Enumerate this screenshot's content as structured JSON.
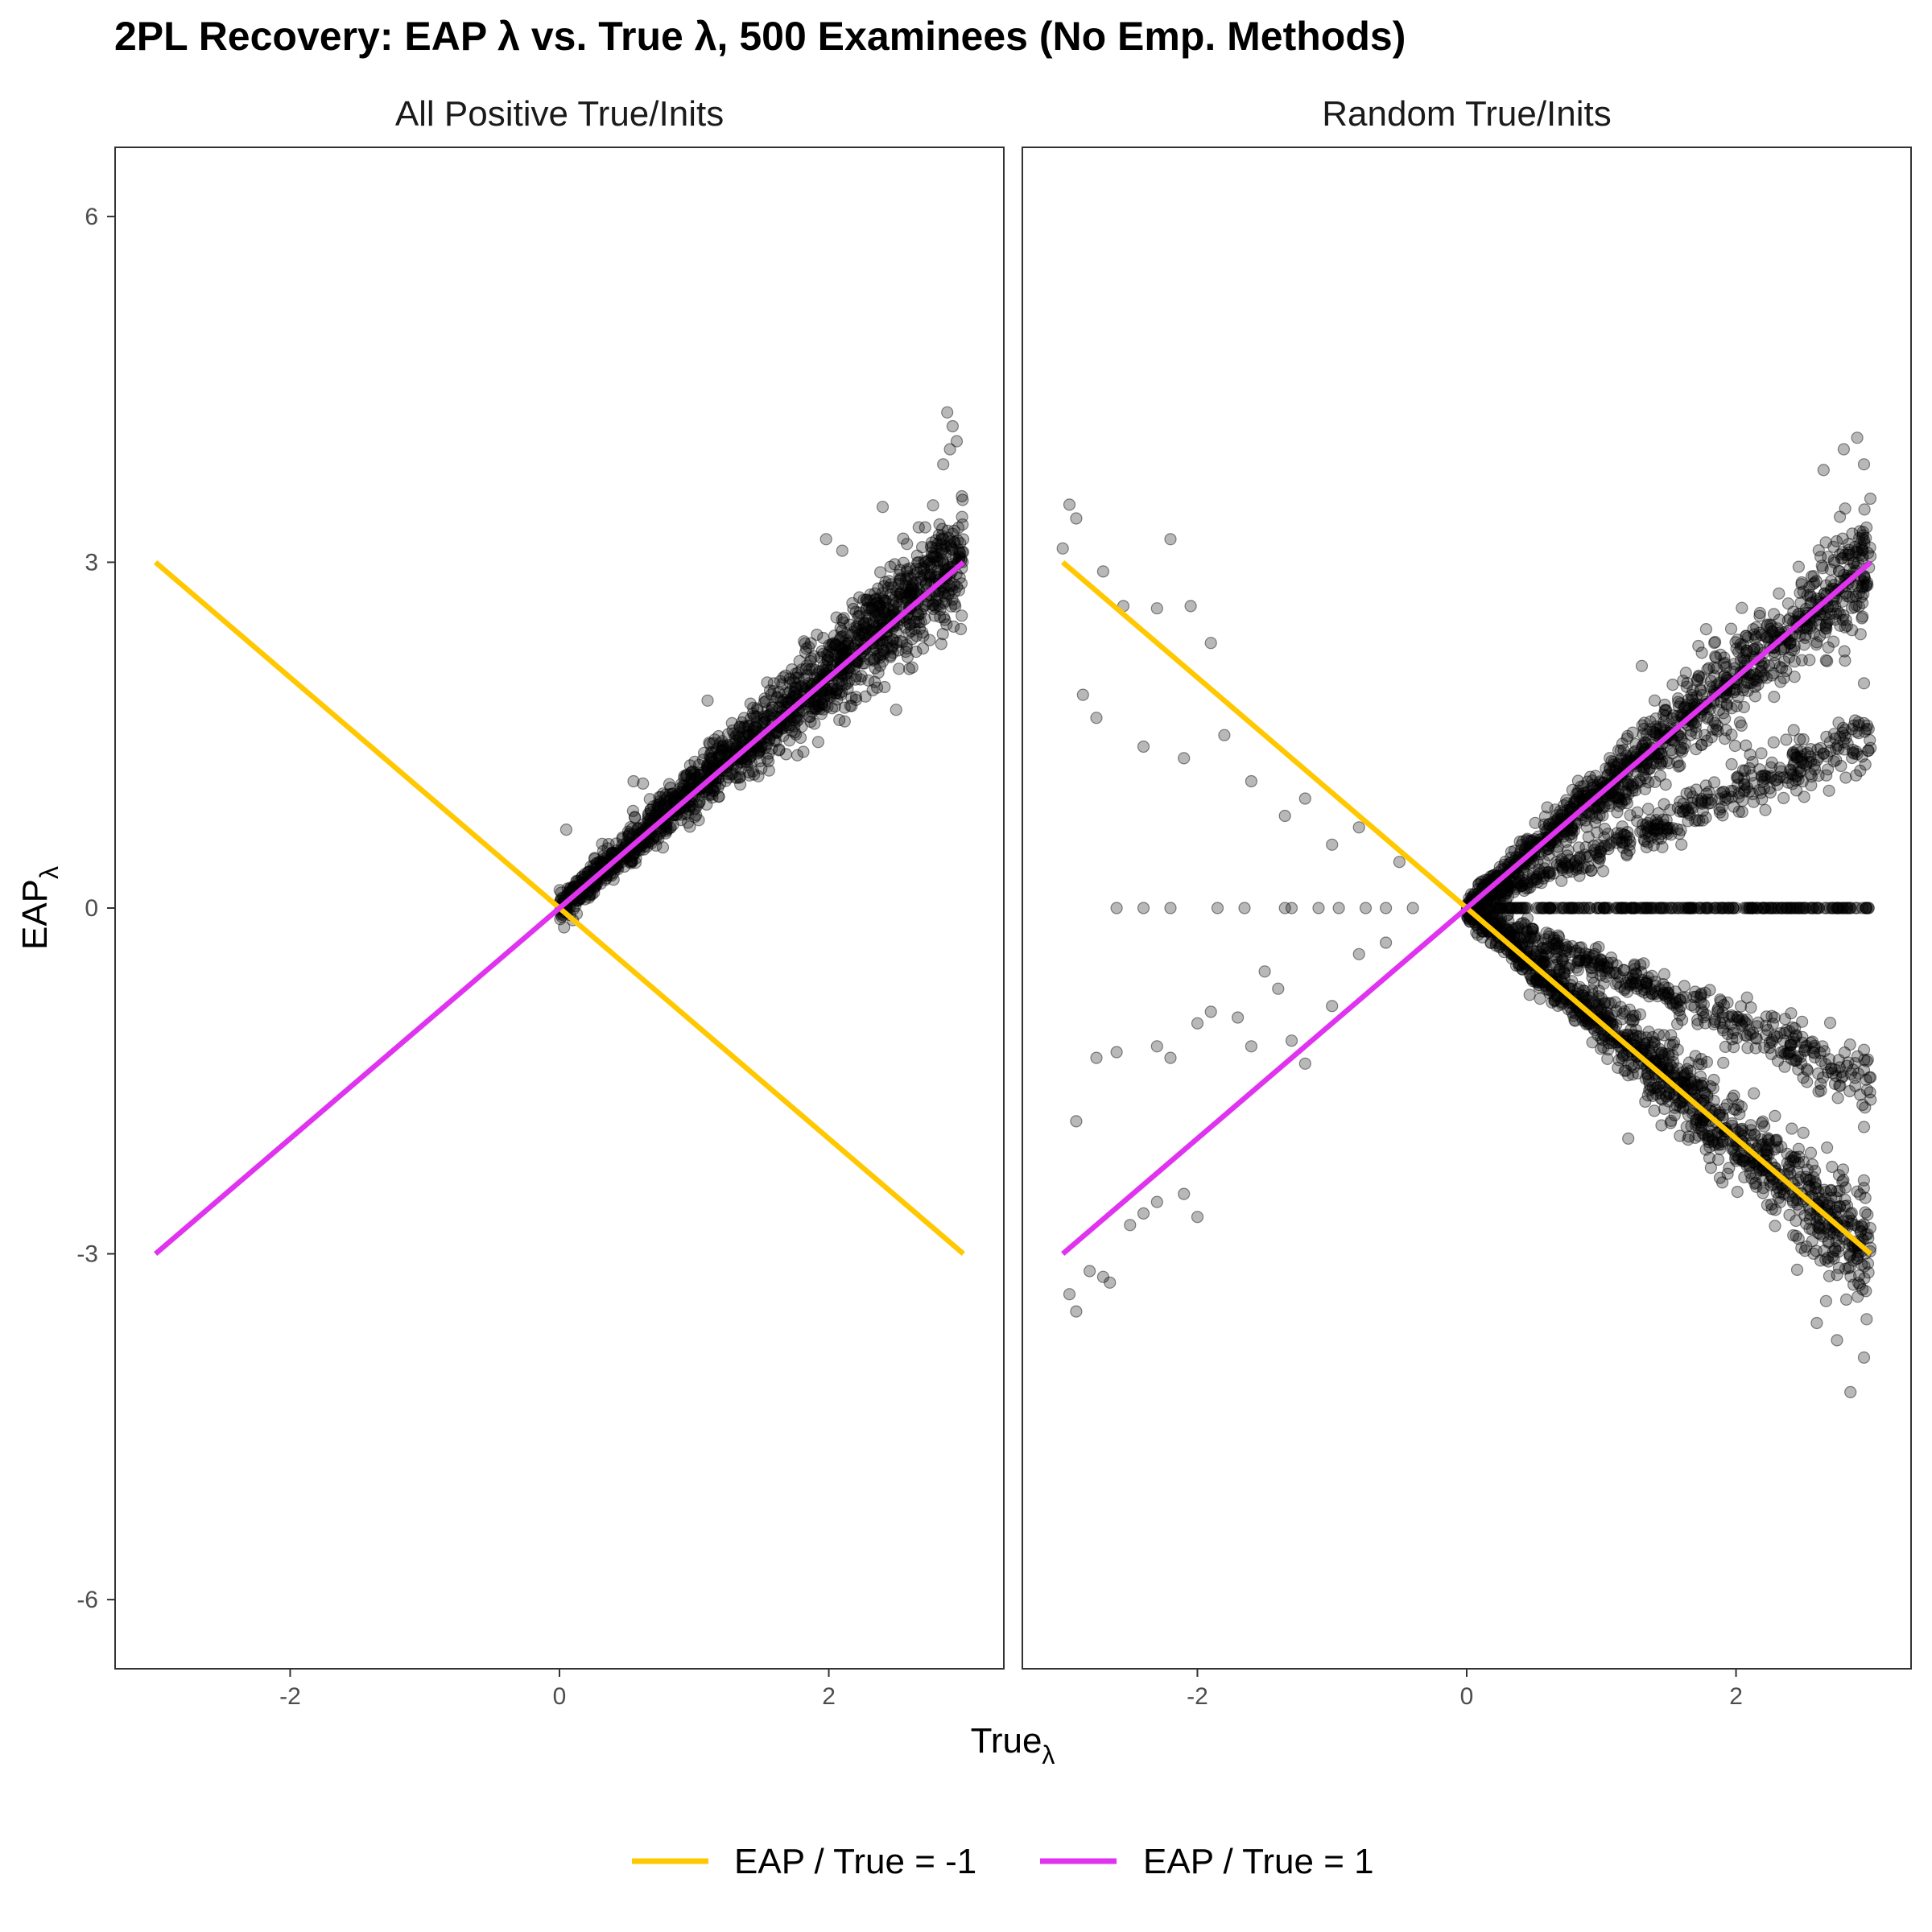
{
  "chart_data": {
    "type": "scatter",
    "title": "2PL Recovery: EAP λ vs. True λ, 500 Examinees (No Emp. Methods)",
    "xlabel": {
      "main": "True",
      "sub": "λ"
    },
    "ylabel": {
      "main": "EAP",
      "sub": "λ"
    },
    "xlim": [
      -3.3,
      3.3
    ],
    "ylim": [
      -6.6,
      6.6
    ],
    "x_ticks": [
      -2,
      0,
      2
    ],
    "x_tick_labels": [
      "-2",
      "0",
      "2"
    ],
    "y_ticks": [
      6,
      3,
      0,
      -3,
      -6
    ],
    "y_tick_labels": [
      "6",
      "3",
      "0",
      "-3",
      "-6"
    ],
    "grid": false,
    "legend_position": "bottom",
    "reference_lines": [
      {
        "name": "EAP / True = -1",
        "slope": -1,
        "x_range": [
          -3,
          3
        ],
        "color": "#FFC800"
      },
      {
        "name": "EAP / True = 1",
        "slope": 1,
        "x_range": [
          -3,
          3
        ],
        "color": "#E033F0"
      }
    ],
    "panels": [
      {
        "label": "All Positive True/Inits",
        "true_x_range": [
          0.0,
          3.0
        ],
        "clusters": [
          {
            "slope": 1.02,
            "x_range": [
              0.0,
              3.0
            ],
            "spread": 0.14,
            "count": 1700
          }
        ],
        "outliers": [
          [
            2.88,
            4.3
          ],
          [
            2.92,
            4.18
          ],
          [
            2.95,
            4.05
          ],
          [
            2.9,
            3.98
          ],
          [
            2.85,
            3.85
          ],
          [
            1.98,
            3.2
          ],
          [
            2.4,
            3.48
          ],
          [
            2.1,
            3.1
          ],
          [
            0.55,
            1.1
          ],
          [
            0.62,
            1.08
          ],
          [
            2.98,
            2.42
          ],
          [
            2.5,
            1.72
          ],
          [
            0.05,
            0.68
          ],
          [
            1.1,
            1.8
          ]
        ]
      },
      {
        "label": "Random True/Inits",
        "true_x_range": [
          -3.0,
          3.0
        ],
        "clusters": [
          {
            "slope": 1.0,
            "x_range": [
              0.0,
              3.0
            ],
            "spread": 0.15,
            "count": 1200
          },
          {
            "slope": -1.0,
            "x_range": [
              0.0,
              3.0
            ],
            "spread": 0.15,
            "count": 1200
          },
          {
            "slope": 0.5,
            "x_range": [
              0.0,
              3.0
            ],
            "spread": 0.08,
            "count": 450
          },
          {
            "slope": -0.5,
            "x_range": [
              0.0,
              3.0
            ],
            "spread": 0.08,
            "count": 450
          },
          {
            "slope": 0.0,
            "x_range": [
              0.2,
              3.0
            ],
            "spread": 0.0,
            "count": 260
          }
        ],
        "outliers": [
          [
            -2.95,
            3.5
          ],
          [
            -2.9,
            3.38
          ],
          [
            -3.0,
            3.12
          ],
          [
            -2.7,
            2.92
          ],
          [
            -2.55,
            2.62
          ],
          [
            -2.3,
            2.6
          ],
          [
            -2.05,
            2.62
          ],
          [
            -1.9,
            2.3
          ],
          [
            -2.2,
            3.2
          ],
          [
            -2.85,
            1.85
          ],
          [
            -2.75,
            1.65
          ],
          [
            -2.4,
            1.4
          ],
          [
            -2.1,
            1.3
          ],
          [
            -1.8,
            1.5
          ],
          [
            -1.6,
            1.1
          ],
          [
            -1.35,
            0.8
          ],
          [
            -1.2,
            0.95
          ],
          [
            -1.0,
            0.55
          ],
          [
            -0.8,
            0.7
          ],
          [
            -0.5,
            0.4
          ],
          [
            -2.6,
            0.0
          ],
          [
            -2.4,
            0.0
          ],
          [
            -2.2,
            0.0
          ],
          [
            -1.85,
            0.0
          ],
          [
            -1.65,
            0.0
          ],
          [
            -1.35,
            0.0
          ],
          [
            -1.3,
            0.0
          ],
          [
            -1.1,
            0.0
          ],
          [
            -0.95,
            0.0
          ],
          [
            -0.75,
            0.0
          ],
          [
            -0.6,
            0.0
          ],
          [
            -0.4,
            0.0
          ],
          [
            -2.95,
            -3.35
          ],
          [
            -2.9,
            -3.5
          ],
          [
            -2.8,
            -3.15
          ],
          [
            -2.7,
            -3.2
          ],
          [
            -2.65,
            -3.25
          ],
          [
            -2.5,
            -2.75
          ],
          [
            -2.4,
            -2.65
          ],
          [
            -2.3,
            -2.55
          ],
          [
            -2.1,
            -2.48
          ],
          [
            -2.0,
            -2.68
          ],
          [
            -2.9,
            -1.85
          ],
          [
            -2.75,
            -1.3
          ],
          [
            -2.6,
            -1.25
          ],
          [
            -2.3,
            -1.2
          ],
          [
            -2.2,
            -1.3
          ],
          [
            -2.0,
            -1.0
          ],
          [
            -1.9,
            -0.9
          ],
          [
            -1.7,
            -0.95
          ],
          [
            -1.6,
            -1.2
          ],
          [
            -1.4,
            -0.7
          ],
          [
            -1.3,
            -1.15
          ],
          [
            -1.2,
            -1.35
          ],
          [
            -1.0,
            -0.85
          ],
          [
            -0.8,
            -0.4
          ],
          [
            -0.6,
            -0.3
          ],
          [
            -1.5,
            -0.55
          ],
          [
            2.9,
            4.08
          ],
          [
            2.8,
            3.98
          ],
          [
            2.95,
            3.85
          ],
          [
            2.65,
            3.8
          ],
          [
            2.85,
            -4.2
          ],
          [
            2.95,
            -3.9
          ],
          [
            2.75,
            -3.75
          ],
          [
            2.6,
            -3.6
          ],
          [
            2.95,
            1.95
          ],
          [
            2.95,
            -1.9
          ],
          [
            2.4,
            2.3
          ],
          [
            2.5,
            -1.95
          ],
          [
            1.2,
            -2.0
          ],
          [
            1.3,
            2.1
          ]
        ]
      }
    ]
  }
}
